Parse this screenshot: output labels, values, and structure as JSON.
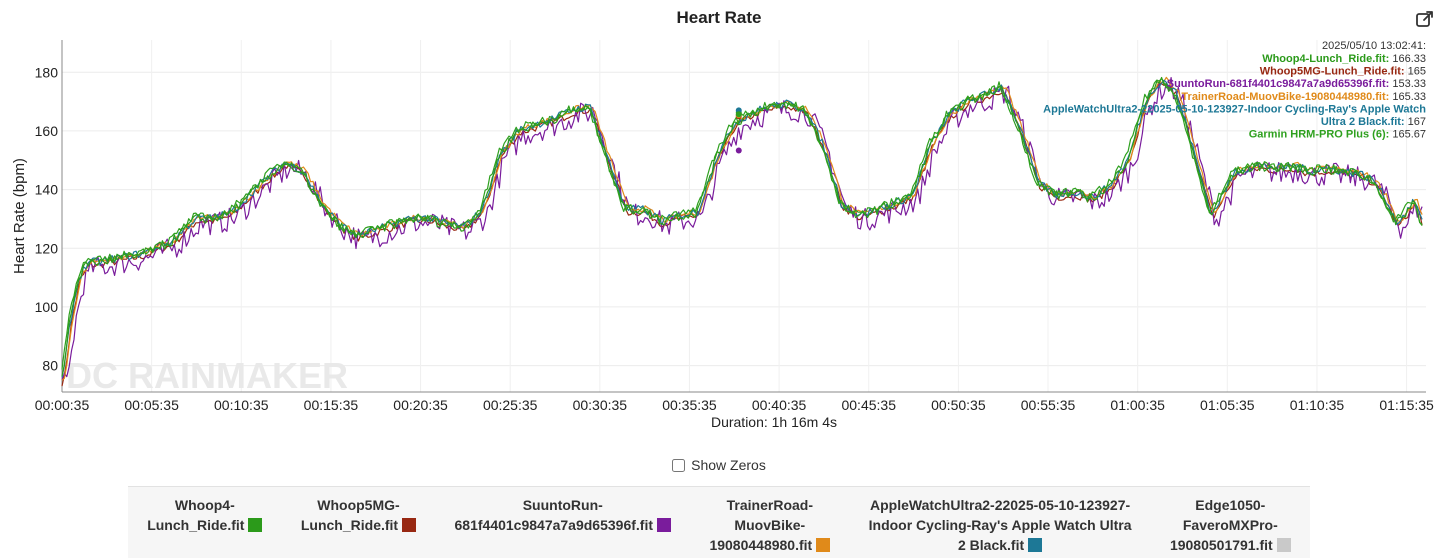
{
  "header": {
    "title": "Heart Rate",
    "export_icon": "external-export-icon"
  },
  "chart_data": {
    "type": "line",
    "title": "Heart Rate",
    "ylabel": "Heart Rate (bpm)",
    "xlabel": "Duration: 1h 16m 4s",
    "ylim": [
      71,
      191
    ],
    "y_ticks": [
      80,
      100,
      120,
      140,
      160,
      180
    ],
    "xlim": [
      35,
      4600
    ],
    "x_ticks": [
      "00:00:35",
      "00:05:35",
      "00:10:35",
      "00:15:35",
      "00:20:35",
      "00:25:35",
      "00:30:35",
      "00:35:35",
      "00:40:35",
      "00:45:35",
      "00:50:35",
      "00:55:35",
      "01:00:35",
      "01:05:35",
      "01:10:35",
      "01:15:35"
    ],
    "grid": true,
    "watermark": "DC RAINMAKER",
    "x_unit": "seconds of elapsed time",
    "base_profile": {
      "x": [
        35,
        60,
        90,
        120,
        150,
        200,
        300,
        400,
        480,
        540,
        600,
        660,
        720,
        780,
        840,
        900,
        960,
        1020,
        1080,
        1140,
        1200,
        1260,
        1320,
        1380,
        1440,
        1500,
        1560,
        1620,
        1680,
        1740,
        1800,
        1860,
        1920,
        1980,
        2040,
        2100,
        2160,
        2220,
        2280,
        2340,
        2400,
        2460,
        2520,
        2580,
        2640,
        2700,
        2760,
        2820,
        2880,
        2940,
        3000,
        3060,
        3120,
        3180,
        3240,
        3300,
        3360,
        3420,
        3480,
        3540,
        3600,
        3660,
        3700,
        3720,
        3760,
        3800,
        3880,
        3960,
        4040,
        4100,
        4160,
        4200,
        4260,
        4320,
        4380,
        4420,
        4460,
        4500,
        4560,
        4600
      ],
      "y": [
        75,
        95,
        110,
        115,
        115,
        116,
        118,
        122,
        130,
        130,
        132,
        138,
        144,
        149,
        146,
        135,
        128,
        124,
        126,
        128,
        130,
        130,
        128,
        127,
        133,
        152,
        160,
        162,
        164,
        167,
        168,
        150,
        133,
        133,
        129,
        131,
        132,
        150,
        162,
        166,
        168,
        169,
        167,
        155,
        135,
        131,
        133,
        135,
        138,
        155,
        165,
        170,
        172,
        175,
        160,
        142,
        138,
        139,
        137,
        141,
        150,
        170,
        176,
        177,
        173,
        160,
        131,
        146,
        148,
        147,
        148,
        146,
        147,
        146,
        145,
        143,
        137,
        128,
        136,
        124
      ]
    },
    "series": [
      {
        "name": "Whoop4-Lunch_Ride.fit",
        "color": "#2b9a1a",
        "tooltip_value": "166.33"
      },
      {
        "name": "Whoop5MG-Lunch_Ride.fit",
        "color": "#982812",
        "tooltip_value": "165"
      },
      {
        "name": "SuuntoRun-681f4401c9847a7a9d65396f.fit",
        "color": "#7a1c9c",
        "tooltip_value": "153.33"
      },
      {
        "name": "TrainerRoad-MuovBike-19080448980.fit",
        "color": "#e08a1a",
        "tooltip_value": "165.33"
      },
      {
        "name": "AppleWatchUltra2-22025-05-10-123927-Indoor Cycling-Ray's Apple Watch Ultra 2 Black.fit",
        "color": "#1d7896",
        "tooltip_value": "167"
      },
      {
        "name": "Garmin HRM-PRO Plus (6)",
        "color": "#2ea01e",
        "tooltip_value": "165.67"
      },
      {
        "name": "Edge1050-FaveroMXPro-19080501791.fit",
        "color": "#c9c9c9"
      }
    ],
    "tooltip": {
      "timestamp": "2025/05/10 13:02:41:",
      "lines": [
        {
          "label": "Whoop4-Lunch_Ride.fit",
          "value": "166.33",
          "color": "#2b9a1a"
        },
        {
          "label": "Whoop5MG-Lunch_Ride.fit",
          "value": "165",
          "color": "#982812"
        },
        {
          "label": "SuuntoRun-681f4401c9847a7a9d65396f.fit",
          "value": "153.33",
          "color": "#7a1c9c"
        },
        {
          "label": "TrainerRoad-MuovBike-19080448980.fit",
          "value": "165.33",
          "color": "#e08a1a"
        },
        {
          "label": "AppleWatchUltra2-22025-05-10-123927-Indoor Cycling-Ray's Apple Watch",
          "value": "",
          "color": "#1d7896"
        },
        {
          "label": "Ultra 2 Black.fit",
          "value": "167",
          "color": "#1d7896"
        },
        {
          "label": "Garmin HRM-PRO Plus (6)",
          "value": "165.67",
          "color": "#2ea01e"
        }
      ],
      "cursor_x": 2300,
      "markers": [
        {
          "y": 166.33,
          "color": "#2b9a1a"
        },
        {
          "y": 165,
          "color": "#982812"
        },
        {
          "y": 153.33,
          "color": "#7a1c9c"
        },
        {
          "y": 165.33,
          "color": "#e08a1a"
        },
        {
          "y": 167,
          "color": "#1d7896"
        },
        {
          "y": 165.67,
          "color": "#2ea01e"
        }
      ]
    }
  },
  "controls": {
    "show_zeros_label": "Show Zeros",
    "show_zeros_checked": false
  },
  "legend": [
    {
      "lines": [
        "Whoop4-",
        "Lunch_Ride.fit"
      ],
      "color": "#2b9a1a"
    },
    {
      "lines": [
        "Whoop5MG-",
        "Lunch_Ride.fit"
      ],
      "color": "#982812"
    },
    {
      "lines": [
        "SuuntoRun-",
        "681f4401c9847a7a9d65396f.fit"
      ],
      "color": "#7a1c9c"
    },
    {
      "lines": [
        "TrainerRoad-",
        "MuovBike-",
        "19080448980.fit"
      ],
      "color": "#e08a1a"
    },
    {
      "lines": [
        "AppleWatchUltra2-22025-05-10-123927-",
        "Indoor Cycling-Ray's Apple Watch Ultra",
        "2 Black.fit"
      ],
      "color": "#1d7896"
    },
    {
      "lines": [
        "Edge1050-",
        "FaveroMXPro-",
        "19080501791.fit"
      ],
      "color": "#c9c9c9"
    }
  ]
}
